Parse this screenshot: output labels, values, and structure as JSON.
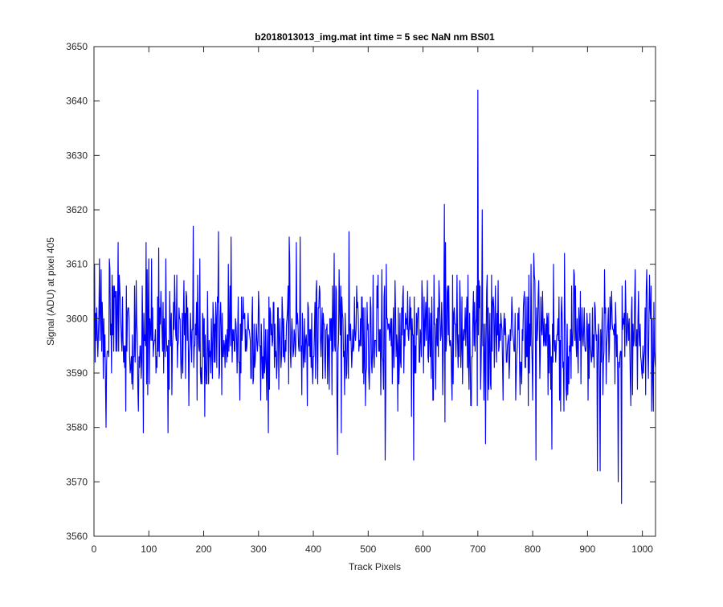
{
  "chart_data": {
    "type": "line",
    "title": "b2018013013_img.mat int time = 5 sec  NaN nm BS01",
    "xlabel": "Track Pixels",
    "ylabel": "Signal (ADU) at pixel 405",
    "xlim": [
      0,
      1024
    ],
    "ylim": [
      3560,
      3650
    ],
    "xticks": [
      0,
      100,
      200,
      300,
      400,
      500,
      600,
      700,
      800,
      900,
      1000
    ],
    "yticks": [
      3560,
      3570,
      3580,
      3590,
      3600,
      3610,
      3620,
      3630,
      3640,
      3650
    ],
    "grid": false,
    "box": true,
    "series": [
      {
        "color": "#0000ff",
        "approximate": true,
        "mean": 3597,
        "noise_std": 6,
        "n_points": 1024,
        "x_start": 1,
        "peaks": [
          {
            "x": 2,
            "y": 3592
          },
          {
            "x": 10,
            "y": 3611
          },
          {
            "x": 22,
            "y": 3580
          },
          {
            "x": 44,
            "y": 3614
          },
          {
            "x": 90,
            "y": 3579
          },
          {
            "x": 95,
            "y": 3614
          },
          {
            "x": 135,
            "y": 3579
          },
          {
            "x": 181,
            "y": 3617
          },
          {
            "x": 202,
            "y": 3582
          },
          {
            "x": 227,
            "y": 3616
          },
          {
            "x": 250,
            "y": 3615
          },
          {
            "x": 318,
            "y": 3579
          },
          {
            "x": 356,
            "y": 3615
          },
          {
            "x": 376,
            "y": 3615
          },
          {
            "x": 444,
            "y": 3575
          },
          {
            "x": 465,
            "y": 3616
          },
          {
            "x": 531,
            "y": 3574
          },
          {
            "x": 583,
            "y": 3574
          },
          {
            "x": 639,
            "y": 3621
          },
          {
            "x": 700,
            "y": 3642
          },
          {
            "x": 708,
            "y": 3620
          },
          {
            "x": 714,
            "y": 3577
          },
          {
            "x": 806,
            "y": 3574
          },
          {
            "x": 835,
            "y": 3576
          },
          {
            "x": 918,
            "y": 3572
          },
          {
            "x": 923,
            "y": 3572
          },
          {
            "x": 956,
            "y": 3570
          },
          {
            "x": 962,
            "y": 3566
          },
          {
            "x": 1008,
            "y": 3609
          },
          {
            "x": 1020,
            "y": 3583
          }
        ]
      }
    ]
  }
}
